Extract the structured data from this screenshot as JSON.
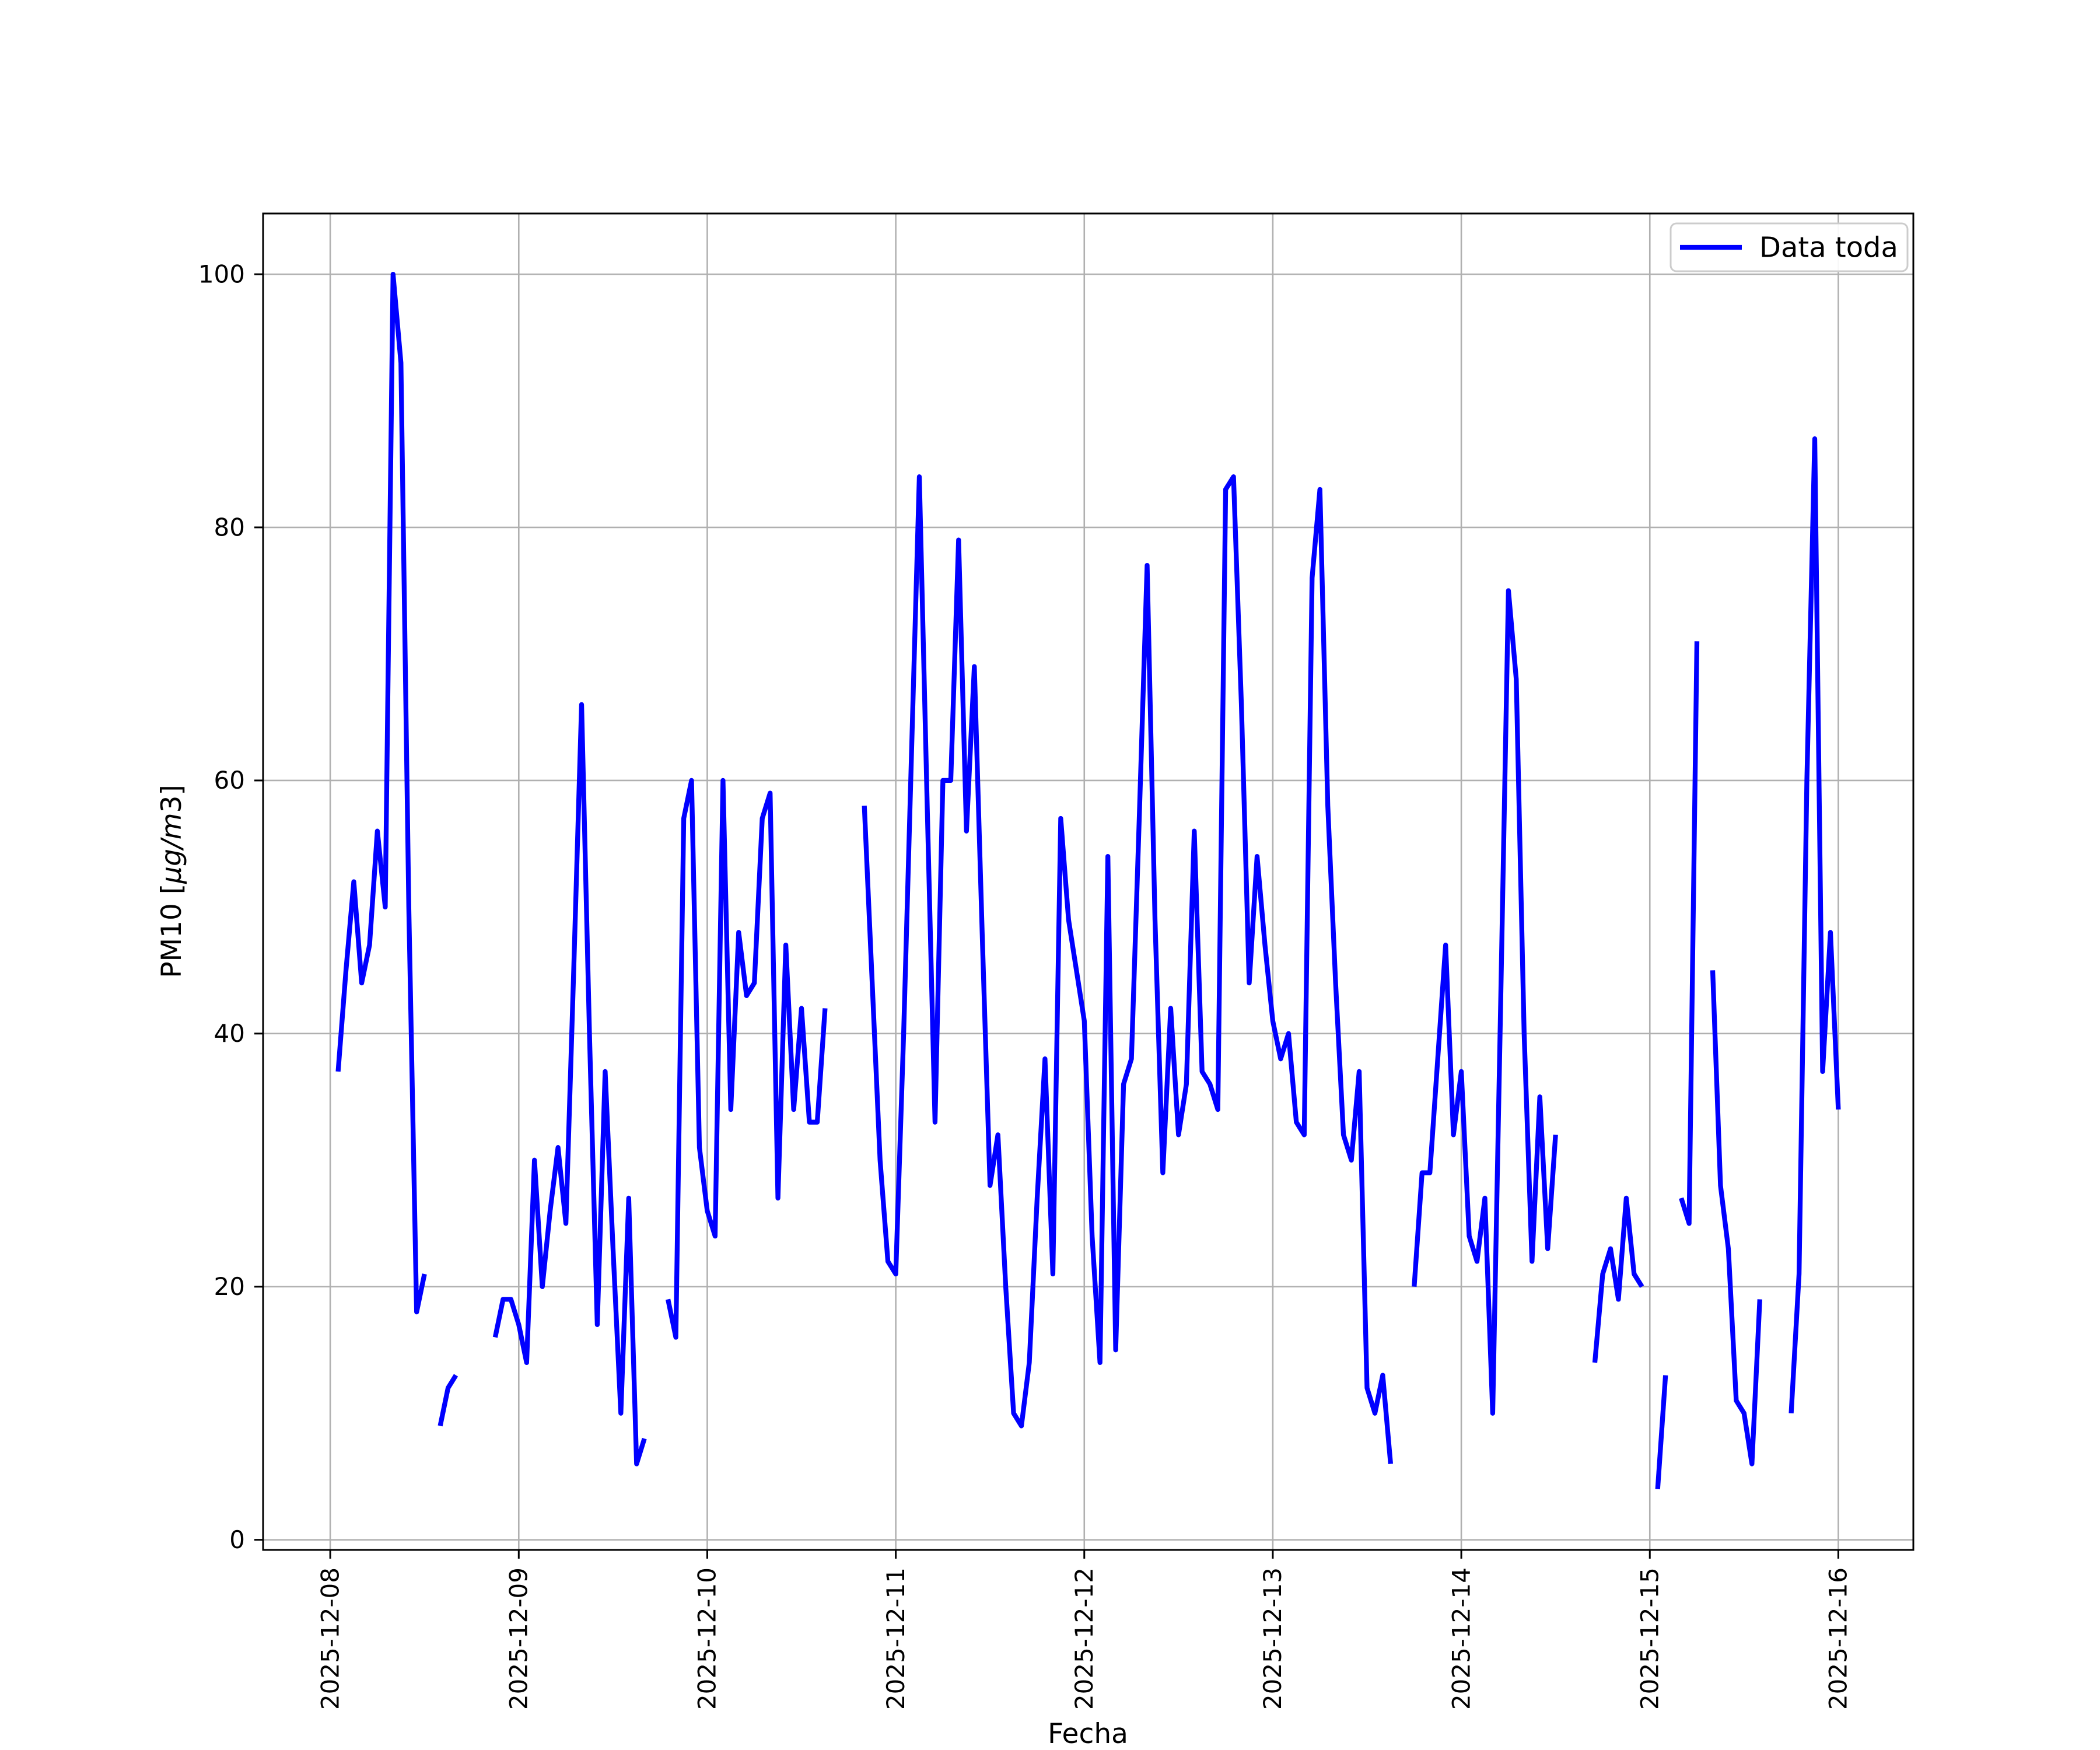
{
  "chart_data": {
    "type": "line",
    "title": "",
    "xlabel": "Fecha",
    "ylabel": "PM10 [μg/m3]",
    "ylabel_parts": {
      "prefix": "PM10 [",
      "italic": "μg/m",
      "suffix": "3]"
    },
    "grid": true,
    "legend": {
      "position": "upper right",
      "entries": [
        {
          "label": "Data toda",
          "color": "#0000ff"
        }
      ]
    },
    "colors": {
      "line": "#0000ff",
      "grid": "#b0b0b0",
      "spine": "#000000",
      "legend_border": "#cccccc",
      "background": "#ffffff"
    },
    "x_unit": "hours since 2025-12-08 00:00",
    "x_tick_hours": [
      0,
      24,
      48,
      72,
      96,
      120,
      144,
      168,
      192
    ],
    "x_tick_labels": [
      "2025-12-08",
      "2025-12-09",
      "2025-12-10",
      "2025-12-11",
      "2025-12-12",
      "2025-12-13",
      "2025-12-14",
      "2025-12-15",
      "2025-12-16"
    ],
    "y_ticks": [
      0,
      20,
      40,
      60,
      80,
      100
    ],
    "xlim_hours": [
      -8.55,
      201.55
    ],
    "ylim": [
      -0.8,
      104.8
    ],
    "series": [
      {
        "name": "Data toda",
        "line_width": 8.3,
        "segments": [
          [
            [
              1,
              37
            ],
            [
              2,
              45
            ],
            [
              3,
              52
            ],
            [
              4,
              44
            ],
            [
              5,
              47
            ],
            [
              6,
              56
            ],
            [
              7,
              50
            ],
            [
              8,
              100
            ],
            [
              9,
              93
            ],
            [
              10,
              50
            ],
            [
              11,
              18
            ],
            [
              12,
              21
            ]
          ],
          [
            [
              14,
              9
            ],
            [
              15,
              12
            ],
            [
              16,
              13
            ]
          ],
          [
            [
              21,
              16
            ],
            [
              22,
              19
            ],
            [
              23,
              19
            ],
            [
              24,
              17
            ],
            [
              25,
              14
            ],
            [
              26,
              30
            ],
            [
              27,
              20
            ],
            [
              28,
              26
            ],
            [
              29,
              31
            ],
            [
              30,
              25
            ],
            [
              31,
              45
            ],
            [
              32,
              66
            ],
            [
              33,
              40
            ],
            [
              34,
              17
            ],
            [
              35,
              37
            ],
            [
              36,
              23
            ],
            [
              37,
              10
            ],
            [
              38,
              27
            ],
            [
              39,
              6
            ],
            [
              40,
              8
            ]
          ],
          [
            [
              43,
              19
            ],
            [
              44,
              16
            ],
            [
              45,
              57
            ],
            [
              46,
              60
            ],
            [
              47,
              31
            ],
            [
              48,
              26
            ],
            [
              49,
              24
            ],
            [
              50,
              60
            ],
            [
              51,
              34
            ],
            [
              52,
              48
            ],
            [
              53,
              43
            ],
            [
              54,
              44
            ],
            [
              55,
              57
            ],
            [
              56,
              59
            ],
            [
              57,
              27
            ],
            [
              58,
              47
            ],
            [
              59,
              34
            ],
            [
              60,
              42
            ],
            [
              61,
              33
            ],
            [
              62,
              33
            ],
            [
              63,
              42
            ]
          ],
          [
            [
              68,
              58
            ],
            [
              69,
              44
            ],
            [
              70,
              30
            ],
            [
              71,
              22
            ],
            [
              72,
              21
            ],
            [
              73,
              40
            ],
            [
              74,
              62
            ],
            [
              75,
              84
            ],
            [
              76,
              58
            ],
            [
              77,
              33
            ],
            [
              78,
              60
            ],
            [
              79,
              60
            ],
            [
              80,
              79
            ],
            [
              81,
              56
            ],
            [
              82,
              69
            ],
            [
              83,
              48
            ],
            [
              84,
              28
            ],
            [
              85,
              32
            ],
            [
              86,
              20
            ],
            [
              87,
              10
            ],
            [
              88,
              9
            ],
            [
              89,
              14
            ],
            [
              90,
              27
            ],
            [
              91,
              38
            ],
            [
              92,
              21
            ],
            [
              93,
              57
            ],
            [
              94,
              49
            ],
            [
              95,
              45
            ],
            [
              96,
              41
            ],
            [
              97,
              24
            ],
            [
              98,
              14
            ],
            [
              99,
              54
            ],
            [
              100,
              15
            ],
            [
              101,
              36
            ],
            [
              102,
              38
            ],
            [
              103,
              57
            ],
            [
              104,
              77
            ],
            [
              105,
              49
            ],
            [
              106,
              29
            ],
            [
              107,
              42
            ],
            [
              108,
              32
            ],
            [
              109,
              36
            ],
            [
              110,
              56
            ],
            [
              111,
              37
            ],
            [
              112,
              36
            ],
            [
              113,
              34
            ],
            [
              114,
              83
            ],
            [
              115,
              84
            ],
            [
              116,
              66
            ],
            [
              117,
              44
            ],
            [
              118,
              54
            ],
            [
              119,
              47
            ],
            [
              120,
              41
            ],
            [
              121,
              38
            ],
            [
              122,
              40
            ],
            [
              123,
              33
            ],
            [
              124,
              32
            ],
            [
              125,
              76
            ],
            [
              126,
              83
            ],
            [
              127,
              58
            ],
            [
              128,
              44
            ],
            [
              129,
              32
            ],
            [
              130,
              30
            ],
            [
              131,
              37
            ],
            [
              132,
              12
            ],
            [
              133,
              10
            ],
            [
              134,
              13
            ],
            [
              135,
              6
            ]
          ],
          [
            [
              138,
              20
            ],
            [
              139,
              29
            ],
            [
              140,
              29
            ],
            [
              141,
              38
            ],
            [
              142,
              47
            ],
            [
              143,
              32
            ],
            [
              144,
              37
            ],
            [
              145,
              24
            ],
            [
              146,
              22
            ],
            [
              147,
              27
            ],
            [
              148,
              10
            ],
            [
              149,
              42
            ],
            [
              150,
              75
            ],
            [
              151,
              68
            ],
            [
              152,
              40
            ],
            [
              153,
              22
            ],
            [
              154,
              35
            ],
            [
              155,
              23
            ],
            [
              156,
              32
            ]
          ],
          [
            [
              161,
              14
            ],
            [
              162,
              21
            ],
            [
              163,
              23
            ],
            [
              164,
              19
            ],
            [
              165,
              27
            ],
            [
              166,
              21
            ],
            [
              167,
              20
            ]
          ],
          [
            [
              169,
              4
            ],
            [
              170,
              13
            ]
          ],
          [
            [
              172,
              27
            ],
            [
              173,
              25
            ],
            [
              174,
              71
            ]
          ],
          [
            [
              176,
              45
            ],
            [
              177,
              28
            ],
            [
              178,
              23
            ],
            [
              179,
              11
            ],
            [
              180,
              10
            ],
            [
              181,
              6
            ],
            [
              182,
              19
            ]
          ],
          [
            [
              186,
              10
            ],
            [
              187,
              21
            ],
            [
              188,
              60
            ],
            [
              189,
              87
            ],
            [
              190,
              37
            ],
            [
              191,
              48
            ],
            [
              192,
              34
            ]
          ]
        ]
      }
    ]
  }
}
